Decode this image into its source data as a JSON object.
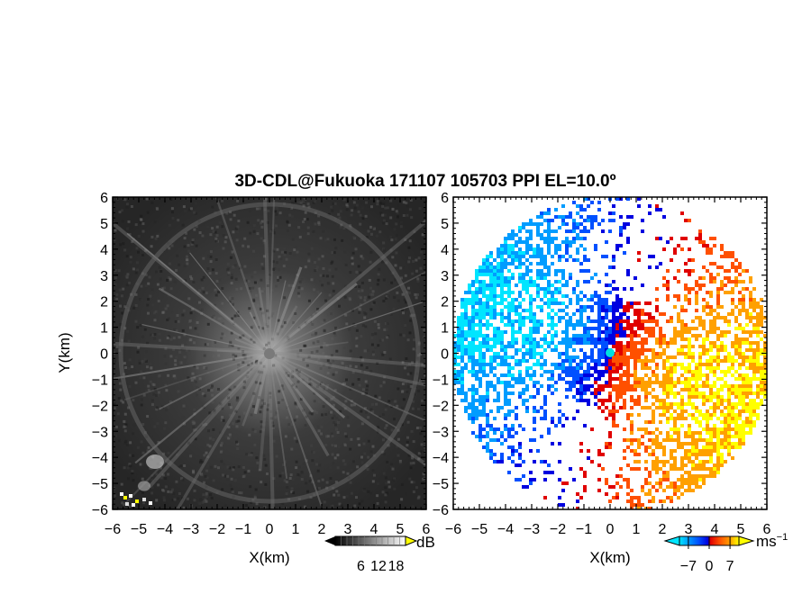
{
  "title": "3D-CDL@Fukuoka 171107 105703 PPI EL=10.0º",
  "chart_data": [
    {
      "type": "heatmap",
      "xlabel": "X(km)",
      "ylabel": "Y(km)",
      "xlim": [
        -6,
        6
      ],
      "ylim": [
        -6,
        6
      ],
      "xticks": [
        "−6",
        "−5",
        "−4",
        "−3",
        "−2",
        "−1",
        "0",
        "1",
        "2",
        "3",
        "4",
        "5",
        "6"
      ],
      "yticks": [
        "−6",
        "−5",
        "−4",
        "−3",
        "−2",
        "−1",
        "0",
        "1",
        "2",
        "3",
        "4",
        "5",
        "6"
      ],
      "colorbar": {
        "unit": "dB",
        "ticks": [
          6,
          12,
          18
        ],
        "tick_labels": [
          "6",
          "12",
          "18"
        ],
        "colors": [
          "#000000",
          "#ffffff"
        ],
        "over_color": "#ffff00"
      }
    },
    {
      "type": "heatmap",
      "xlabel": "X(km)",
      "xlim": [
        -6,
        6
      ],
      "ylim": [
        -6,
        6
      ],
      "xticks": [
        "−6",
        "−5",
        "−4",
        "−3",
        "−2",
        "−1",
        "0",
        "1",
        "2",
        "3",
        "4",
        "5",
        "6"
      ],
      "yticks": [
        "−6",
        "−5",
        "−4",
        "−3",
        "−2",
        "−1",
        "0",
        "1",
        "2",
        "3",
        "4",
        "5",
        "6"
      ],
      "colorbar": {
        "unit": "ms",
        "unit_exponent": "−1",
        "ticks": [
          -7,
          0,
          7
        ],
        "tick_labels": [
          "−7",
          "0",
          "7"
        ],
        "colors": [
          "#00e5ff",
          "#009cff",
          "#0050ff",
          "#0000e0",
          "#e00000",
          "#ff5000",
          "#ffa000",
          "#ffff00"
        ]
      }
    }
  ]
}
